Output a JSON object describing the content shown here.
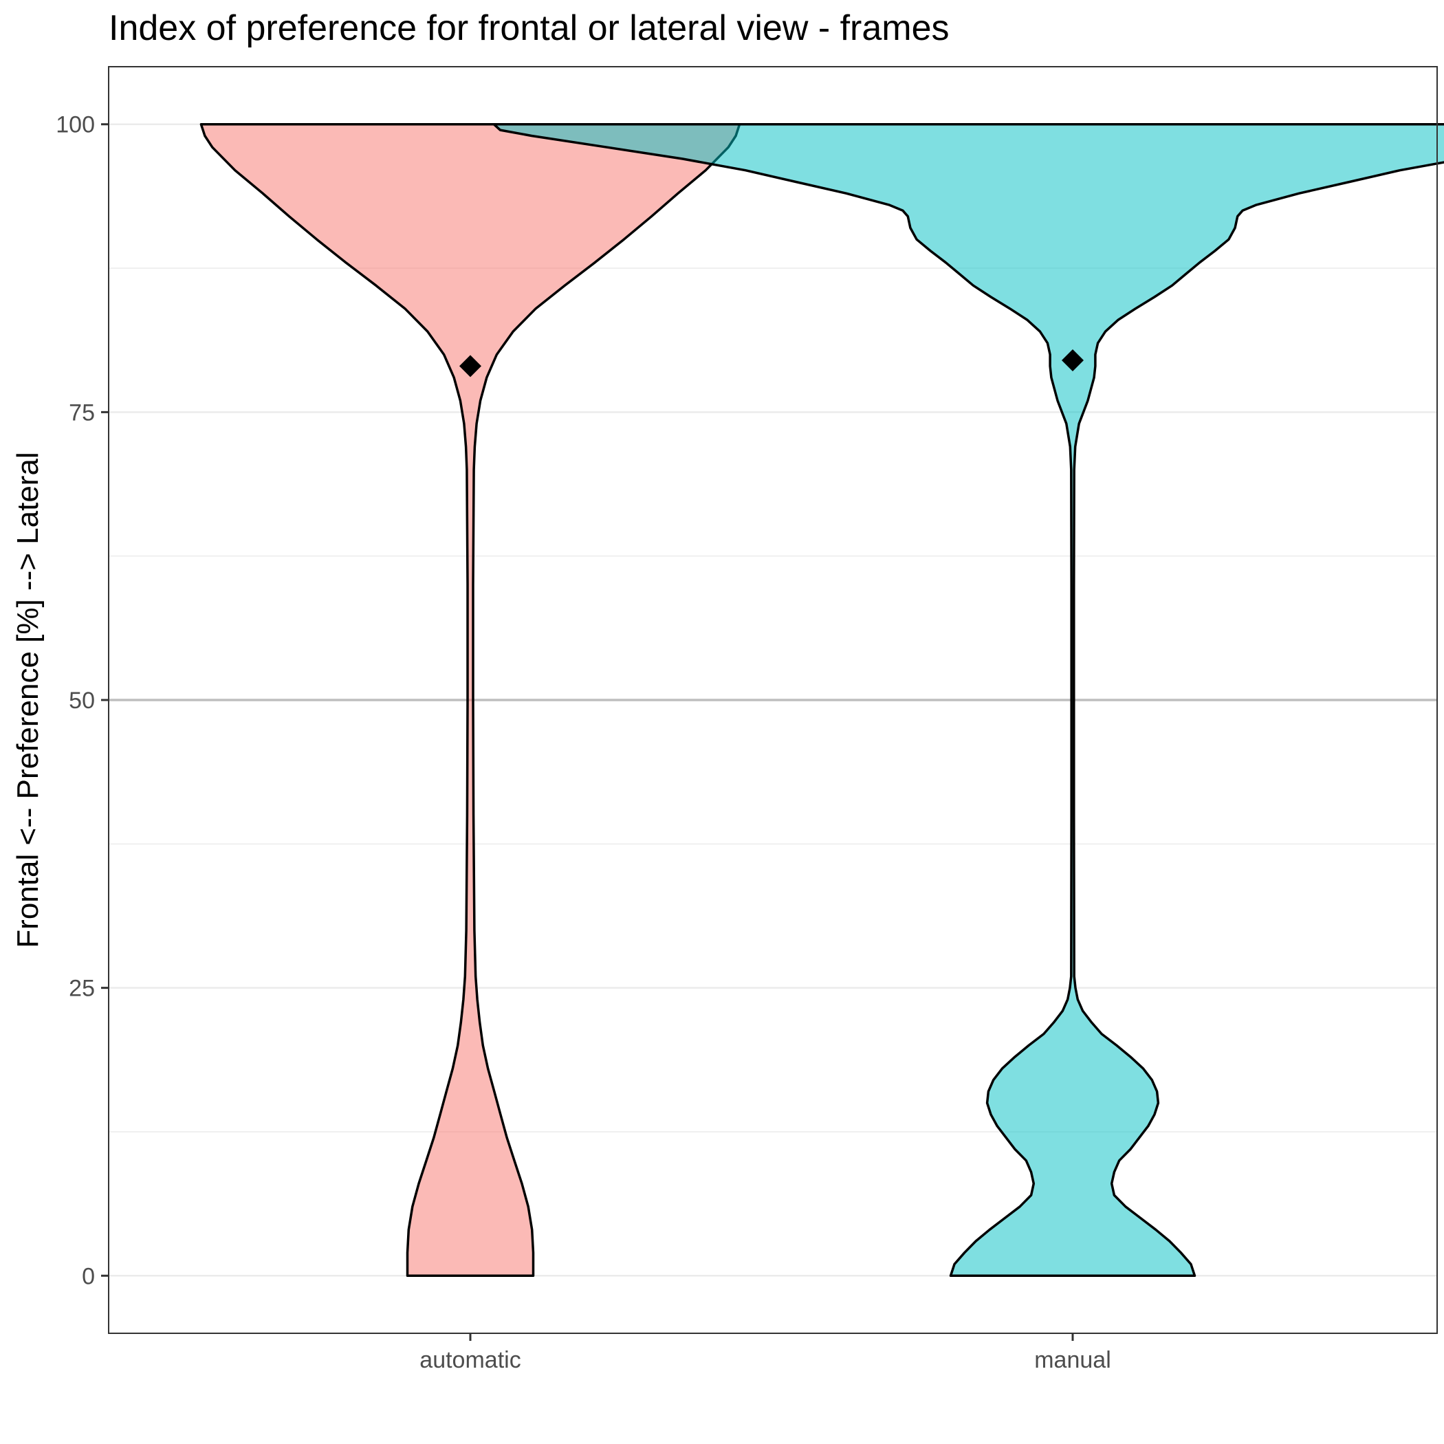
{
  "chart_data": {
    "type": "violin",
    "title": "Index of preference for frontal or lateral view - frames",
    "xlabel": "",
    "ylabel": "Frontal <--    Preference [%]    --> Lateral",
    "categories": [
      "automatic",
      "manual"
    ],
    "ylim": [
      -5,
      105
    ],
    "yticks": [
      0,
      25,
      50,
      75,
      100
    ],
    "minor_gridlines": [
      12.5,
      37.5,
      62.5,
      87.5
    ],
    "reference_line": 50,
    "grid": true,
    "legend": "none",
    "colors": {
      "automatic": "#F8766D",
      "manual": "#00BFC4"
    },
    "fill_opacity": 0.5,
    "series": [
      {
        "category": "automatic",
        "mean": 79,
        "profile": [
          [
            0,
            5.0
          ],
          [
            2,
            5.0
          ],
          [
            4,
            4.9
          ],
          [
            6,
            4.6
          ],
          [
            8,
            4.1
          ],
          [
            10,
            3.5
          ],
          [
            12,
            2.9
          ],
          [
            14,
            2.4
          ],
          [
            16,
            1.9
          ],
          [
            18,
            1.4
          ],
          [
            20,
            1.0
          ],
          [
            22,
            0.75
          ],
          [
            24,
            0.55
          ],
          [
            26,
            0.42
          ],
          [
            30,
            0.32
          ],
          [
            40,
            0.25
          ],
          [
            50,
            0.22
          ],
          [
            60,
            0.22
          ],
          [
            70,
            0.28
          ],
          [
            72,
            0.35
          ],
          [
            74,
            0.5
          ],
          [
            76,
            0.8
          ],
          [
            78,
            1.3
          ],
          [
            80,
            2.1
          ],
          [
            82,
            3.4
          ],
          [
            84,
            5.2
          ],
          [
            86,
            7.5
          ],
          [
            88,
            9.9
          ],
          [
            90,
            12.2
          ],
          [
            92,
            14.4
          ],
          [
            94,
            16.5
          ],
          [
            96,
            18.7
          ],
          [
            98,
            20.5
          ],
          [
            99,
            21.1
          ],
          [
            100,
            21.4
          ]
        ]
      },
      {
        "category": "manual",
        "mean": 79.5,
        "profile": [
          [
            0,
            9.7
          ],
          [
            1,
            9.4
          ],
          [
            2,
            8.6
          ],
          [
            3,
            7.7
          ],
          [
            4,
            6.6
          ],
          [
            5,
            5.4
          ],
          [
            6,
            4.2
          ],
          [
            7,
            3.3
          ],
          [
            8,
            3.1
          ],
          [
            9,
            3.3
          ],
          [
            10,
            3.7
          ],
          [
            11,
            4.6
          ],
          [
            12,
            5.3
          ],
          [
            13,
            6.0
          ],
          [
            14,
            6.5
          ],
          [
            15,
            6.8
          ],
          [
            16,
            6.7
          ],
          [
            17,
            6.3
          ],
          [
            18,
            5.6
          ],
          [
            19,
            4.6
          ],
          [
            20,
            3.5
          ],
          [
            21,
            2.3
          ],
          [
            22,
            1.5
          ],
          [
            23,
            0.8
          ],
          [
            24,
            0.4
          ],
          [
            25,
            0.22
          ],
          [
            26,
            0.12
          ],
          [
            40,
            0.1
          ],
          [
            60,
            0.1
          ],
          [
            70,
            0.12
          ],
          [
            72,
            0.2
          ],
          [
            74,
            0.5
          ],
          [
            76,
            1.2
          ],
          [
            78,
            1.7
          ],
          [
            79,
            1.8
          ],
          [
            80,
            1.8
          ],
          [
            81,
            2.0
          ],
          [
            82,
            2.6
          ],
          [
            83,
            3.6
          ],
          [
            84,
            5.0
          ],
          [
            85,
            6.5
          ],
          [
            86,
            7.9
          ],
          [
            87,
            9.0
          ],
          [
            88,
            10.1
          ],
          [
            89,
            11.3
          ],
          [
            90,
            12.4
          ],
          [
            91,
            12.9
          ],
          [
            92,
            13.1
          ],
          [
            92.5,
            13.5
          ],
          [
            93,
            14.6
          ],
          [
            94,
            18.0
          ],
          [
            95,
            22.0
          ],
          [
            96,
            26.0
          ],
          [
            97,
            31.0
          ],
          [
            98,
            37.0
          ],
          [
            99,
            43.0
          ],
          [
            99.5,
            45.5
          ],
          [
            100,
            46.0
          ]
        ]
      }
    ]
  }
}
